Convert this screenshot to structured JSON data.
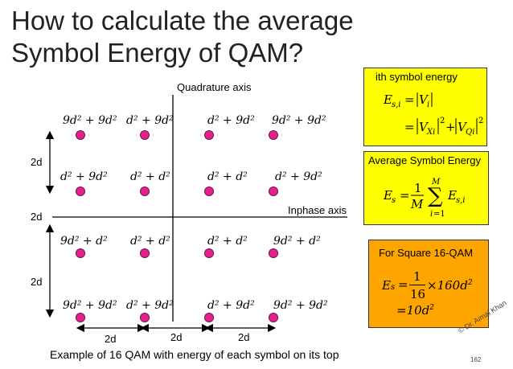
{
  "title": "How to calculate the average Symbol Energy of QAM?",
  "axes": {
    "quadrature": "Quadrature axis",
    "inphase": "Inphase axis"
  },
  "spacing": {
    "left_top": "2d",
    "left_mid": "2d",
    "left_bottom": "2d",
    "bottom_1": "2d",
    "bottom_2": "2d",
    "bottom_3": "2d"
  },
  "constellation": {
    "row1": [
      "9d² + 9d²",
      "d² + 9d²",
      "d² + 9d²",
      "9d² + 9d²"
    ],
    "row2": [
      "d² + 9d²",
      "d² + d²",
      "d² + d²",
      "d² + 9d²"
    ],
    "row3": [
      "9d² + d²",
      "d² + d²",
      "d² + d²",
      "9d² + d²"
    ],
    "row4": [
      "9d² + 9d²",
      "d² + 9d²",
      "d² + 9d²",
      "9d² + 9d²"
    ]
  },
  "caption": "Example of 16 QAM with energy of each symbol on its top",
  "box1": {
    "heading": "ith symbol energy"
  },
  "box2": {
    "heading": "Average Symbol Energy"
  },
  "box3": {
    "heading": "For Square 16-QAM",
    "numerator": "1",
    "denominator": "16",
    "product": "×160d",
    "result": "=10d"
  },
  "credit": "© Dr. Aimal Khan",
  "page_number": "162",
  "colors": {
    "dot": "#e5208e",
    "box1": "#ffff00",
    "box2": "#ffff00",
    "box3": "#ffa500"
  }
}
